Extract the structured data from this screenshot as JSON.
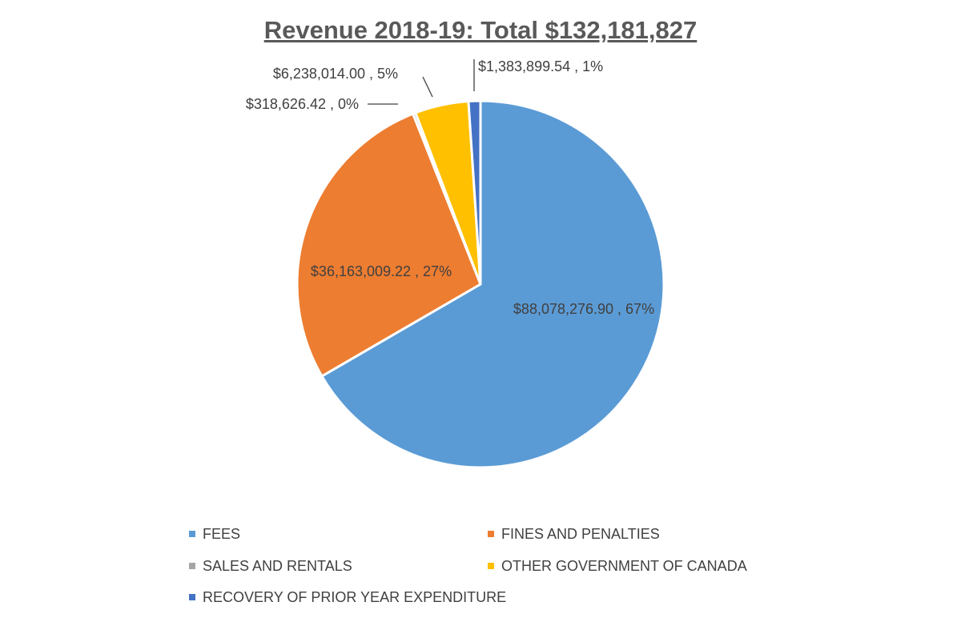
{
  "chart_data": {
    "type": "pie",
    "title": "Revenue 2018-19: Total $132,181,827",
    "slices": [
      {
        "name": "FEES",
        "value": 88078276.9,
        "percent": 67,
        "label": "$88,078,276.90 , 67%",
        "color": "#5B9BD5"
      },
      {
        "name": "FINES AND PENALTIES",
        "value": 36163009.22,
        "percent": 27,
        "label": "$36,163,009.22 , 27%",
        "color": "#ED7D31"
      },
      {
        "name": "SALES AND RENTALS",
        "value": 318626.42,
        "percent": 0,
        "label": "$318,626.42 , 0%",
        "color": "#A5A5A5"
      },
      {
        "name": "OTHER GOVERNMENT OF CANADA",
        "value": 6238014.0,
        "percent": 5,
        "label": "$6,238,014.00 , 5%",
        "color": "#FFC000"
      },
      {
        "name": "RECOVERY OF PRIOR YEAR EXPENDITURE",
        "value": 1383899.54,
        "percent": 1,
        "label": "$1,383,899.54 , 1%",
        "color": "#4472C4"
      }
    ],
    "legend_position": "bottom"
  }
}
